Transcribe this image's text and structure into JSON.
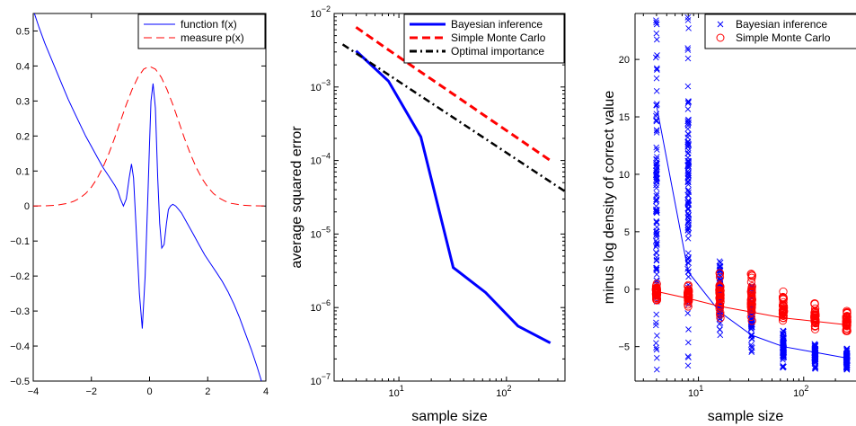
{
  "chart_data": [
    {
      "type": "line",
      "xlim": [
        -4,
        4
      ],
      "ylim": [
        -0.5,
        0.55
      ],
      "xticks": [
        "−4",
        "−2",
        "0",
        "2",
        "4"
      ],
      "xtick_values": [
        -4,
        -2,
        0,
        2,
        4
      ],
      "yticks": [
        "−0.5",
        "−0.4",
        "−0.3",
        "−0.2",
        "−0.1",
        "0",
        "0.1",
        "0.2",
        "0.3",
        "0.4",
        "0.5"
      ],
      "ytick_values": [
        -0.5,
        -0.4,
        -0.3,
        -0.2,
        -0.1,
        0,
        0.1,
        0.2,
        0.3,
        0.4,
        0.5
      ],
      "legend_position": "top-right",
      "series": [
        {
          "name": "function f(x)",
          "color": "#0000ff",
          "style": "solid",
          "x": [
            -4,
            -3.8,
            -3.6,
            -3.4,
            -3.2,
            -3.0,
            -2.8,
            -2.6,
            -2.4,
            -2.2,
            -2.0,
            -1.8,
            -1.6,
            -1.4,
            -1.2,
            -1.1,
            -1.0,
            -0.9,
            -0.8,
            -0.7,
            -0.62,
            -0.55,
            -0.45,
            -0.35,
            -0.25,
            -0.15,
            -0.05,
            0.0,
            0.05,
            0.12,
            0.2,
            0.28,
            0.35,
            0.42,
            0.5,
            0.58,
            0.65,
            0.72,
            0.8,
            0.9,
            1.0,
            1.1,
            1.3,
            1.5,
            1.7,
            1.9,
            2.1,
            2.3,
            2.5,
            2.7,
            2.9,
            3.1,
            3.3,
            3.5,
            3.7,
            3.85
          ],
          "y": [
            0.56,
            0.51,
            0.465,
            0.425,
            0.385,
            0.345,
            0.305,
            0.27,
            0.235,
            0.2,
            0.17,
            0.14,
            0.11,
            0.085,
            0.06,
            0.045,
            0.02,
            0.0,
            0.02,
            0.08,
            0.12,
            0.08,
            -0.08,
            -0.25,
            -0.35,
            -0.2,
            0.05,
            0.18,
            0.3,
            0.35,
            0.28,
            0.08,
            -0.05,
            -0.12,
            -0.11,
            -0.05,
            -0.01,
            0.0,
            0.005,
            0.0,
            -0.01,
            -0.02,
            -0.05,
            -0.08,
            -0.11,
            -0.14,
            -0.165,
            -0.19,
            -0.215,
            -0.245,
            -0.28,
            -0.32,
            -0.365,
            -0.41,
            -0.46,
            -0.5
          ]
        },
        {
          "name": "measure p(x)",
          "color": "#ff0000",
          "style": "dashed",
          "x": [
            -4,
            -3.6,
            -3.2,
            -2.8,
            -2.6,
            -2.4,
            -2.2,
            -2.0,
            -1.8,
            -1.6,
            -1.4,
            -1.2,
            -1.0,
            -0.8,
            -0.6,
            -0.4,
            -0.2,
            0,
            0.2,
            0.4,
            0.6,
            0.8,
            1.0,
            1.2,
            1.4,
            1.6,
            1.8,
            2.0,
            2.2,
            2.4,
            2.6,
            2.8,
            3.2,
            3.6,
            4.0
          ],
          "y": [
            0.0001,
            0.0006,
            0.0024,
            0.0079,
            0.0136,
            0.0224,
            0.0355,
            0.054,
            0.079,
            0.111,
            0.15,
            0.194,
            0.242,
            0.29,
            0.333,
            0.368,
            0.391,
            0.399,
            0.391,
            0.368,
            0.333,
            0.29,
            0.242,
            0.194,
            0.15,
            0.111,
            0.079,
            0.054,
            0.0355,
            0.0224,
            0.0136,
            0.0079,
            0.0024,
            0.0006,
            0.0001
          ]
        }
      ]
    },
    {
      "type": "line",
      "x_scale": "log",
      "y_scale": "log",
      "xlabel": "sample size",
      "ylabel": "average squared error",
      "xlim": [
        2.5,
        350
      ],
      "ylim": [
        1e-07,
        0.01
      ],
      "xticks": [
        {
          "base": "10",
          "exp": "1",
          "value": 10
        },
        {
          "base": "10",
          "exp": "2",
          "value": 100
        }
      ],
      "yticks": [
        {
          "base": "10",
          "exp": "−7",
          "value": 1e-07
        },
        {
          "base": "10",
          "exp": "−6",
          "value": 1e-06
        },
        {
          "base": "10",
          "exp": "−5",
          "value": 1e-05
        },
        {
          "base": "10",
          "exp": "−4",
          "value": 0.0001
        },
        {
          "base": "10",
          "exp": "−3",
          "value": 0.001
        },
        {
          "base": "10",
          "exp": "−2",
          "value": 0.01
        }
      ],
      "legend_position": "top-right",
      "series": [
        {
          "name": "Bayesian inference",
          "color": "#0000ff",
          "style": "solid",
          "x": [
            4,
            8,
            16,
            32,
            64,
            128,
            256
          ],
          "y": [
            0.0031,
            0.0012,
            0.00021,
            3.5e-06,
            1.6e-06,
            5.6e-07,
            3.3e-07
          ]
        },
        {
          "name": "Simple Monte Carlo",
          "color": "#ff0000",
          "style": "dashed",
          "x": [
            4,
            8,
            16,
            32,
            64,
            128,
            256
          ],
          "y": [
            0.0065,
            0.0032,
            0.0016,
            0.0008,
            0.0004,
            0.0002,
            0.0001
          ]
        },
        {
          "name": "Optimal importance",
          "color": "#000000",
          "style": "dashdot",
          "x": [
            3,
            350
          ],
          "y": [
            0.0038,
            3.8e-05
          ]
        }
      ]
    },
    {
      "type": "scatter",
      "x_scale": "log",
      "xlabel": "sample size",
      "ylabel": "minus log density of correct value",
      "xlim": [
        2.5,
        320
      ],
      "ylim": [
        -8,
        24
      ],
      "xticks": [
        {
          "base": "10",
          "exp": "1",
          "value": 10
        },
        {
          "base": "10",
          "exp": "2",
          "value": 100
        }
      ],
      "yticks": [
        "−5",
        "0",
        "5",
        "10",
        "15",
        "20"
      ],
      "ytick_values": [
        -5,
        0,
        5,
        10,
        15,
        20
      ],
      "legend_position": "top-right",
      "series": [
        {
          "name": "Bayesian inference",
          "color": "#0000ff",
          "marker": "x",
          "groups": [
            {
              "x": 4,
              "min": -7,
              "max": 23.5,
              "mean": 16
            },
            {
              "x": 8,
              "min": -7.5,
              "max": 24,
              "mean": 1.5
            },
            {
              "x": 16,
              "min": -4,
              "max": 2.5,
              "mean": -2
            },
            {
              "x": 32,
              "min": -5.5,
              "max": 0.5,
              "mean": -4
            },
            {
              "x": 64,
              "min": -7,
              "max": -3.5,
              "mean": -5
            },
            {
              "x": 128,
              "min": -7,
              "max": -4.5,
              "mean": -5.5
            },
            {
              "x": 256,
              "min": -7,
              "max": -5,
              "mean": -6
            }
          ]
        },
        {
          "name": "Simple Monte Carlo",
          "color": "#ff0000",
          "marker": "o",
          "groups": [
            {
              "x": 4,
              "min": -1,
              "max": 0.5,
              "mean": -0.2
            },
            {
              "x": 8,
              "min": -1.5,
              "max": 0.5,
              "mean": -0.8
            },
            {
              "x": 16,
              "min": -2.5,
              "max": 1.5,
              "mean": -1.5
            },
            {
              "x": 32,
              "min": -3,
              "max": 1.5,
              "mean": -2
            },
            {
              "x": 64,
              "min": -3.5,
              "max": -0.2,
              "mean": -2.5
            },
            {
              "x": 128,
              "min": -3.5,
              "max": -1.2,
              "mean": -2.8
            },
            {
              "x": 256,
              "min": -3.8,
              "max": -1.8,
              "mean": -3.1
            }
          ]
        }
      ]
    }
  ]
}
